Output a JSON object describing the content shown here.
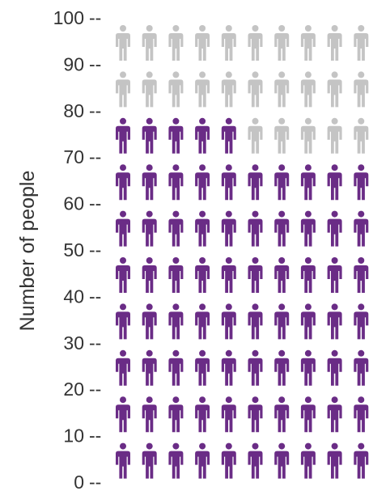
{
  "chart_data": {
    "type": "pictograph",
    "ylabel": "Number of people",
    "ylim": [
      0,
      100
    ],
    "y_ticks": [
      "0",
      "10",
      "20",
      "30",
      "40",
      "50",
      "60",
      "70",
      "80",
      "90",
      "100"
    ],
    "tick_suffix": "--",
    "total": 100,
    "icons_per_row": 10,
    "value": 75,
    "colors": {
      "filled": "#6a2c86",
      "empty": "#c4c4c4",
      "text": "#333333"
    },
    "icon": "person-icon"
  }
}
